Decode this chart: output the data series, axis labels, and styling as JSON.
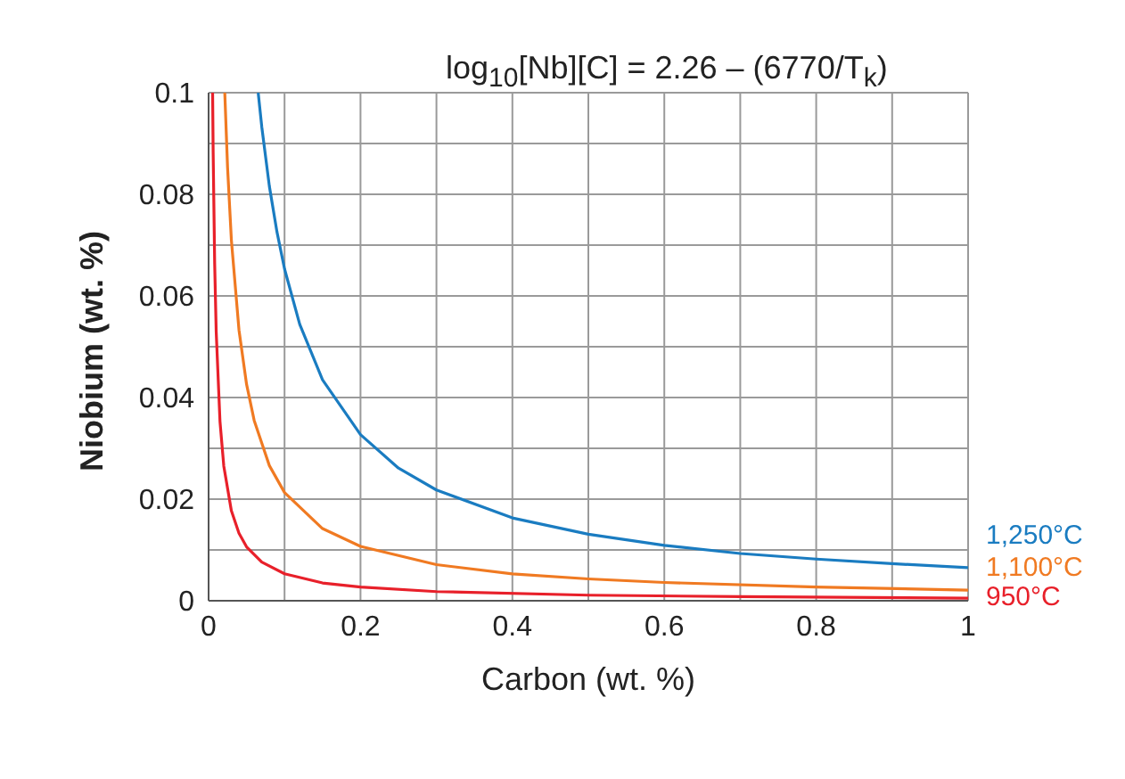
{
  "chart_data": {
    "type": "line",
    "title": "log$_{10}$[Nb][C] = 2.26 – (6770/T$_{k}$)",
    "xlabel": "Carbon (wt. %)",
    "ylabel": "Niobium (wt. %)",
    "xlim": [
      0,
      1
    ],
    "ylim": [
      0,
      0.1
    ],
    "xticks": [
      0,
      {
        "value": 0.1,
        "label": null
      },
      0.2,
      {
        "value": 0.3,
        "label": null
      },
      0.4,
      {
        "value": 0.5,
        "label": null
      },
      0.6,
      {
        "value": 0.7,
        "label": null
      },
      0.8,
      {
        "value": 0.9,
        "label": null
      },
      1
    ],
    "yticks": [
      0,
      {
        "value": 0.01,
        "label": null
      },
      0.02,
      {
        "value": 0.03,
        "label": null
      },
      0.04,
      {
        "value": 0.05,
        "label": null
      },
      0.06,
      {
        "value": 0.07,
        "label": null
      },
      0.08,
      {
        "value": 0.09,
        "label": null
      },
      0.1
    ],
    "grid": true,
    "legend": false,
    "marker": "none",
    "line_style": "solid",
    "series": [
      {
        "name": "1,250°C",
        "color": "#1a7cc1",
        "x": [
          0.0653,
          0.07,
          0.08,
          0.09,
          0.1,
          0.12,
          0.15,
          0.2,
          0.25,
          0.3,
          0.4,
          0.5,
          0.6,
          0.7,
          0.8,
          0.9,
          1.0
        ],
        "values": [
          0.1,
          0.0933,
          0.0816,
          0.0726,
          0.0653,
          0.0544,
          0.0435,
          0.0327,
          0.0261,
          0.0218,
          0.0163,
          0.0131,
          0.0109,
          0.0093,
          0.0082,
          0.0073,
          0.0065
        ]
      },
      {
        "name": "1,100°C",
        "color": "#f07a22",
        "x": [
          0.0213,
          0.025,
          0.03,
          0.04,
          0.05,
          0.06,
          0.08,
          0.1,
          0.15,
          0.2,
          0.3,
          0.4,
          0.5,
          0.6,
          0.8,
          1.0
        ],
        "values": [
          0.1,
          0.0852,
          0.071,
          0.0533,
          0.0426,
          0.0355,
          0.0266,
          0.0213,
          0.0142,
          0.0107,
          0.0071,
          0.0053,
          0.0043,
          0.0036,
          0.0027,
          0.0021
        ]
      },
      {
        "name": "950°C",
        "color": "#e8202a",
        "x": [
          0.0053,
          0.006,
          0.008,
          0.01,
          0.015,
          0.02,
          0.03,
          0.04,
          0.05,
          0.07,
          0.1,
          0.15,
          0.2,
          0.3,
          0.5,
          0.7,
          1.0
        ],
        "values": [
          0.1,
          0.0883,
          0.0663,
          0.053,
          0.0353,
          0.0265,
          0.0177,
          0.0133,
          0.0106,
          0.0076,
          0.0053,
          0.0035,
          0.0027,
          0.0018,
          0.0011,
          0.0008,
          0.0005
        ]
      }
    ]
  }
}
